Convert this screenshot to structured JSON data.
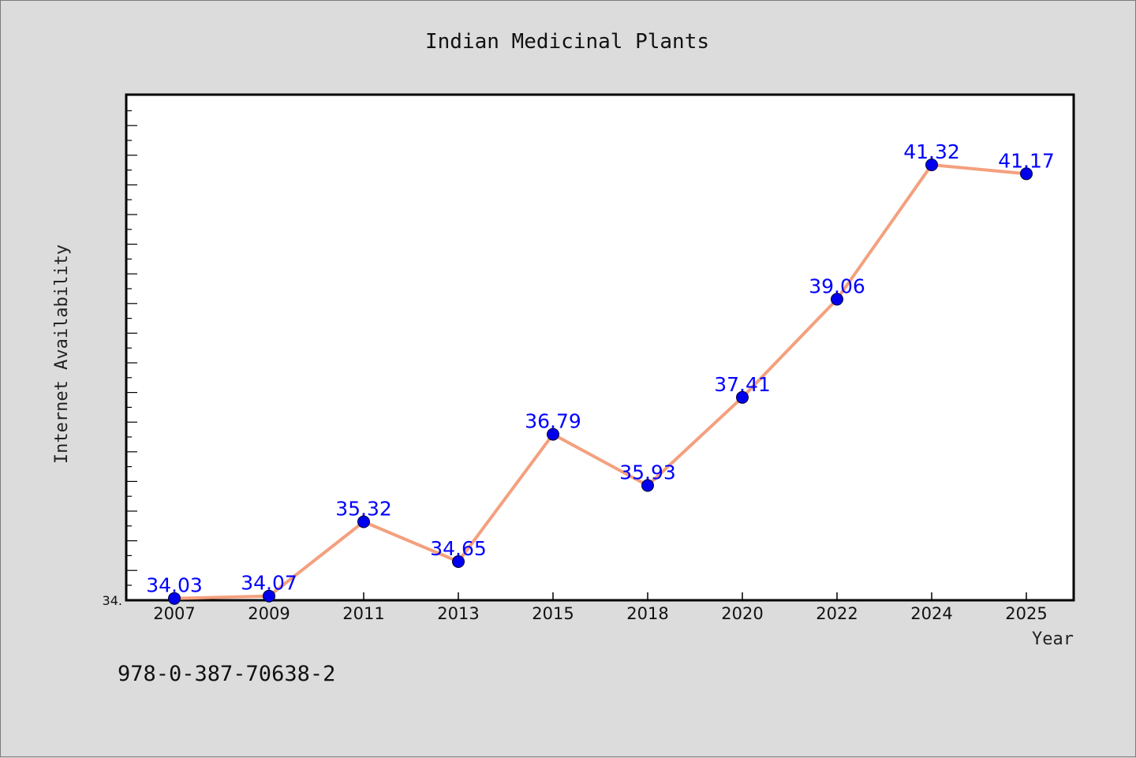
{
  "chart_data": {
    "type": "line",
    "title": "Indian Medicinal Plants",
    "xlabel": "Year",
    "ylabel": "Internet Availability",
    "categories": [
      "2007",
      "2009",
      "2011",
      "2013",
      "2015",
      "2018",
      "2020",
      "2022",
      "2024",
      "2025"
    ],
    "series": [
      {
        "values": [
          34.03,
          34.07,
          35.32,
          34.65,
          36.79,
          35.93,
          37.41,
          39.06,
          41.32,
          41.17
        ],
        "labels": [
          "34.03",
          "34.07",
          "35.32",
          "34.65",
          "36.79",
          "35.93",
          "37.41",
          "39.06",
          "41.32",
          "41.17"
        ]
      }
    ],
    "ylim": [
      34.0,
      42.5
    ],
    "y_tick_labels": [
      "34."
    ],
    "grid": false,
    "colors": {
      "line": "#f4a07e",
      "marker": "#0000ee",
      "data_label": "#0000ff"
    }
  },
  "footer_text": "978-0-387-70638-2"
}
